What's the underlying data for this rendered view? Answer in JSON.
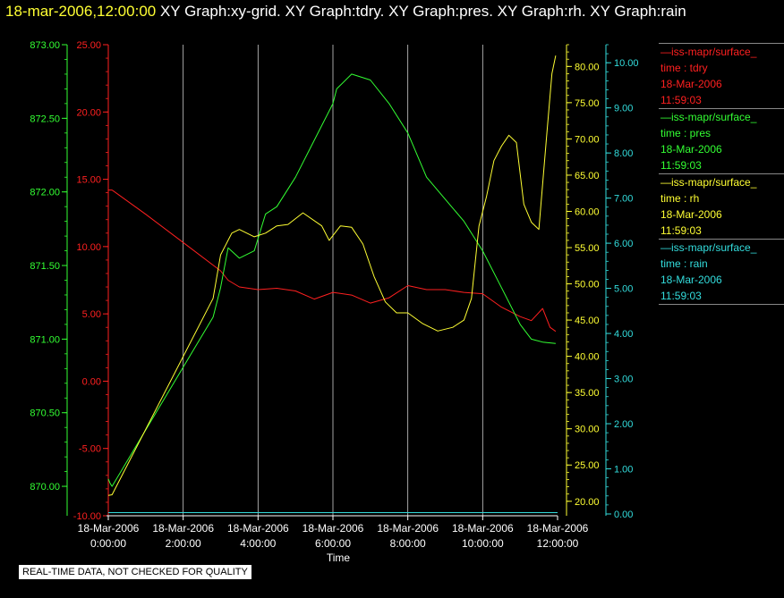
{
  "title": {
    "datetime": "18-mar-2006,12:00:00",
    "graphs": "XY Graph:xy-grid.  XY Graph:tdry.  XY Graph:pres.  XY Graph:rh.  XY Graph:rain"
  },
  "legend": [
    {
      "source": "—iss-mapr/surface_",
      "var": "time : tdry",
      "date": "18-Mar-2006",
      "time": "11:59:03",
      "color": "#ff2020"
    },
    {
      "source": "—iss-mapr/surface_",
      "var": "time : pres",
      "date": "18-Mar-2006",
      "time": "11:59:03",
      "color": "#33ff33"
    },
    {
      "source": "—iss-mapr/surface_",
      "var": "time : rh",
      "date": "18-Mar-2006",
      "time": "11:59:03",
      "color": "#ffff33"
    },
    {
      "source": "—iss-mapr/surface_",
      "var": "time : rain",
      "date": "18-Mar-2006",
      "time": "11:59:03",
      "color": "#33dddd"
    }
  ],
  "footer_note": "REAL-TIME DATA, NOT CHECKED FOR QUALITY",
  "chart_data": {
    "type": "line",
    "xlabel": "Time",
    "xlim": [
      0,
      12
    ],
    "x_ticks": [
      {
        "date": "18-Mar-2006",
        "time": "0:00:00",
        "value": 0
      },
      {
        "date": "18-Mar-2006",
        "time": "2:00:00",
        "value": 2
      },
      {
        "date": "18-Mar-2006",
        "time": "4:00:00",
        "value": 4
      },
      {
        "date": "18-Mar-2006",
        "time": "6:00:00",
        "value": 6
      },
      {
        "date": "18-Mar-2006",
        "time": "8:00:00",
        "value": 8
      },
      {
        "date": "18-Mar-2006",
        "time": "10:00:00",
        "value": 10
      },
      {
        "date": "18-Mar-2006",
        "time": "12:00:00",
        "value": 12
      }
    ],
    "grid_x": true,
    "axes": [
      {
        "id": "pres",
        "side": "left",
        "color": "#33ff33",
        "ylim": [
          869.8,
          873.0
        ],
        "ticks": [
          "870.00",
          "870.50",
          "871.00",
          "871.50",
          "872.00",
          "872.50",
          "873.00"
        ]
      },
      {
        "id": "tdry",
        "side": "left",
        "color": "#ff2020",
        "ylim": [
          -10,
          25
        ],
        "ticks": [
          "-10.00",
          "-5.00",
          "0.00",
          "5.00",
          "10.00",
          "15.00",
          "20.00",
          "25.00"
        ]
      },
      {
        "id": "rh",
        "side": "right",
        "color": "#ffff33",
        "ylim": [
          18,
          83
        ],
        "ticks": [
          "20.00",
          "25.00",
          "30.00",
          "35.00",
          "40.00",
          "45.00",
          "50.00",
          "55.00",
          "60.00",
          "65.00",
          "70.00",
          "75.00",
          "80.00"
        ]
      },
      {
        "id": "rain",
        "side": "right",
        "color": "#33dddd",
        "ylim": [
          -0.04,
          10.4
        ],
        "ticks": [
          "0.00",
          "1.00",
          "2.00",
          "3.00",
          "4.00",
          "5.00",
          "6.00",
          "7.00",
          "8.00",
          "9.00",
          "10.00"
        ]
      }
    ],
    "series": [
      {
        "name": "tdry",
        "axis": "tdry",
        "color": "#ff2020",
        "x": [
          0,
          0.1,
          1,
          2,
          3,
          3.2,
          3.5,
          4,
          4.5,
          5,
          5.5,
          6,
          6.5,
          7,
          7.5,
          8,
          8.5,
          9,
          9.5,
          10,
          10.5,
          11,
          11.3,
          11.6,
          11.8,
          11.95
        ],
        "y": [
          14.2,
          14.2,
          12.4,
          10.3,
          8.2,
          7.5,
          7.0,
          6.8,
          6.9,
          6.7,
          6.1,
          6.6,
          6.4,
          5.8,
          6.2,
          7.1,
          6.8,
          6.8,
          6.6,
          6.5,
          5.5,
          4.8,
          4.5,
          5.4,
          4.0,
          3.7
        ]
      },
      {
        "name": "pres",
        "axis": "pres",
        "color": "#33ff33",
        "x": [
          0,
          0.05,
          0.1,
          2.8,
          3.0,
          3.2,
          3.5,
          3.9,
          4.2,
          4.5,
          5.0,
          5.5,
          6.0,
          6.1,
          6.5,
          7.0,
          7.5,
          8.0,
          8.5,
          9.0,
          9.5,
          10.0,
          10.5,
          11.0,
          11.3,
          11.6,
          11.95
        ],
        "y": [
          870.05,
          870.02,
          870.0,
          871.15,
          871.35,
          871.62,
          871.55,
          871.6,
          871.85,
          871.9,
          872.1,
          872.35,
          872.6,
          872.7,
          872.8,
          872.76,
          872.6,
          872.4,
          872.1,
          871.95,
          871.8,
          871.6,
          871.35,
          871.1,
          871.0,
          870.98,
          870.97
        ]
      },
      {
        "name": "rh",
        "axis": "rh",
        "color": "#ffff33",
        "x": [
          0,
          0.1,
          2.8,
          3.0,
          3.3,
          3.5,
          3.9,
          4.2,
          4.5,
          4.8,
          5.2,
          5.7,
          5.9,
          6.2,
          6.5,
          6.8,
          7.1,
          7.4,
          7.7,
          8.0,
          8.4,
          8.8,
          9.2,
          9.5,
          9.7,
          9.9,
          10.1,
          10.3,
          10.5,
          10.7,
          10.9,
          11.1,
          11.3,
          11.5,
          11.7,
          11.85,
          11.95
        ],
        "y": [
          20.8,
          20.9,
          48.0,
          54.0,
          57.0,
          57.5,
          56.5,
          57.0,
          58.0,
          58.2,
          59.8,
          58.0,
          56.0,
          58.0,
          57.8,
          55.5,
          51.0,
          47.5,
          46.0,
          46.0,
          44.5,
          43.5,
          44.0,
          45.0,
          48.0,
          58.0,
          62.0,
          67.0,
          69.0,
          70.5,
          69.5,
          61.0,
          58.5,
          57.5,
          70.0,
          79.0,
          81.5
        ]
      },
      {
        "name": "rain",
        "axis": "rain",
        "color": "#33dddd",
        "x": [
          0,
          12
        ],
        "y": [
          0.03,
          0.03
        ]
      }
    ]
  }
}
